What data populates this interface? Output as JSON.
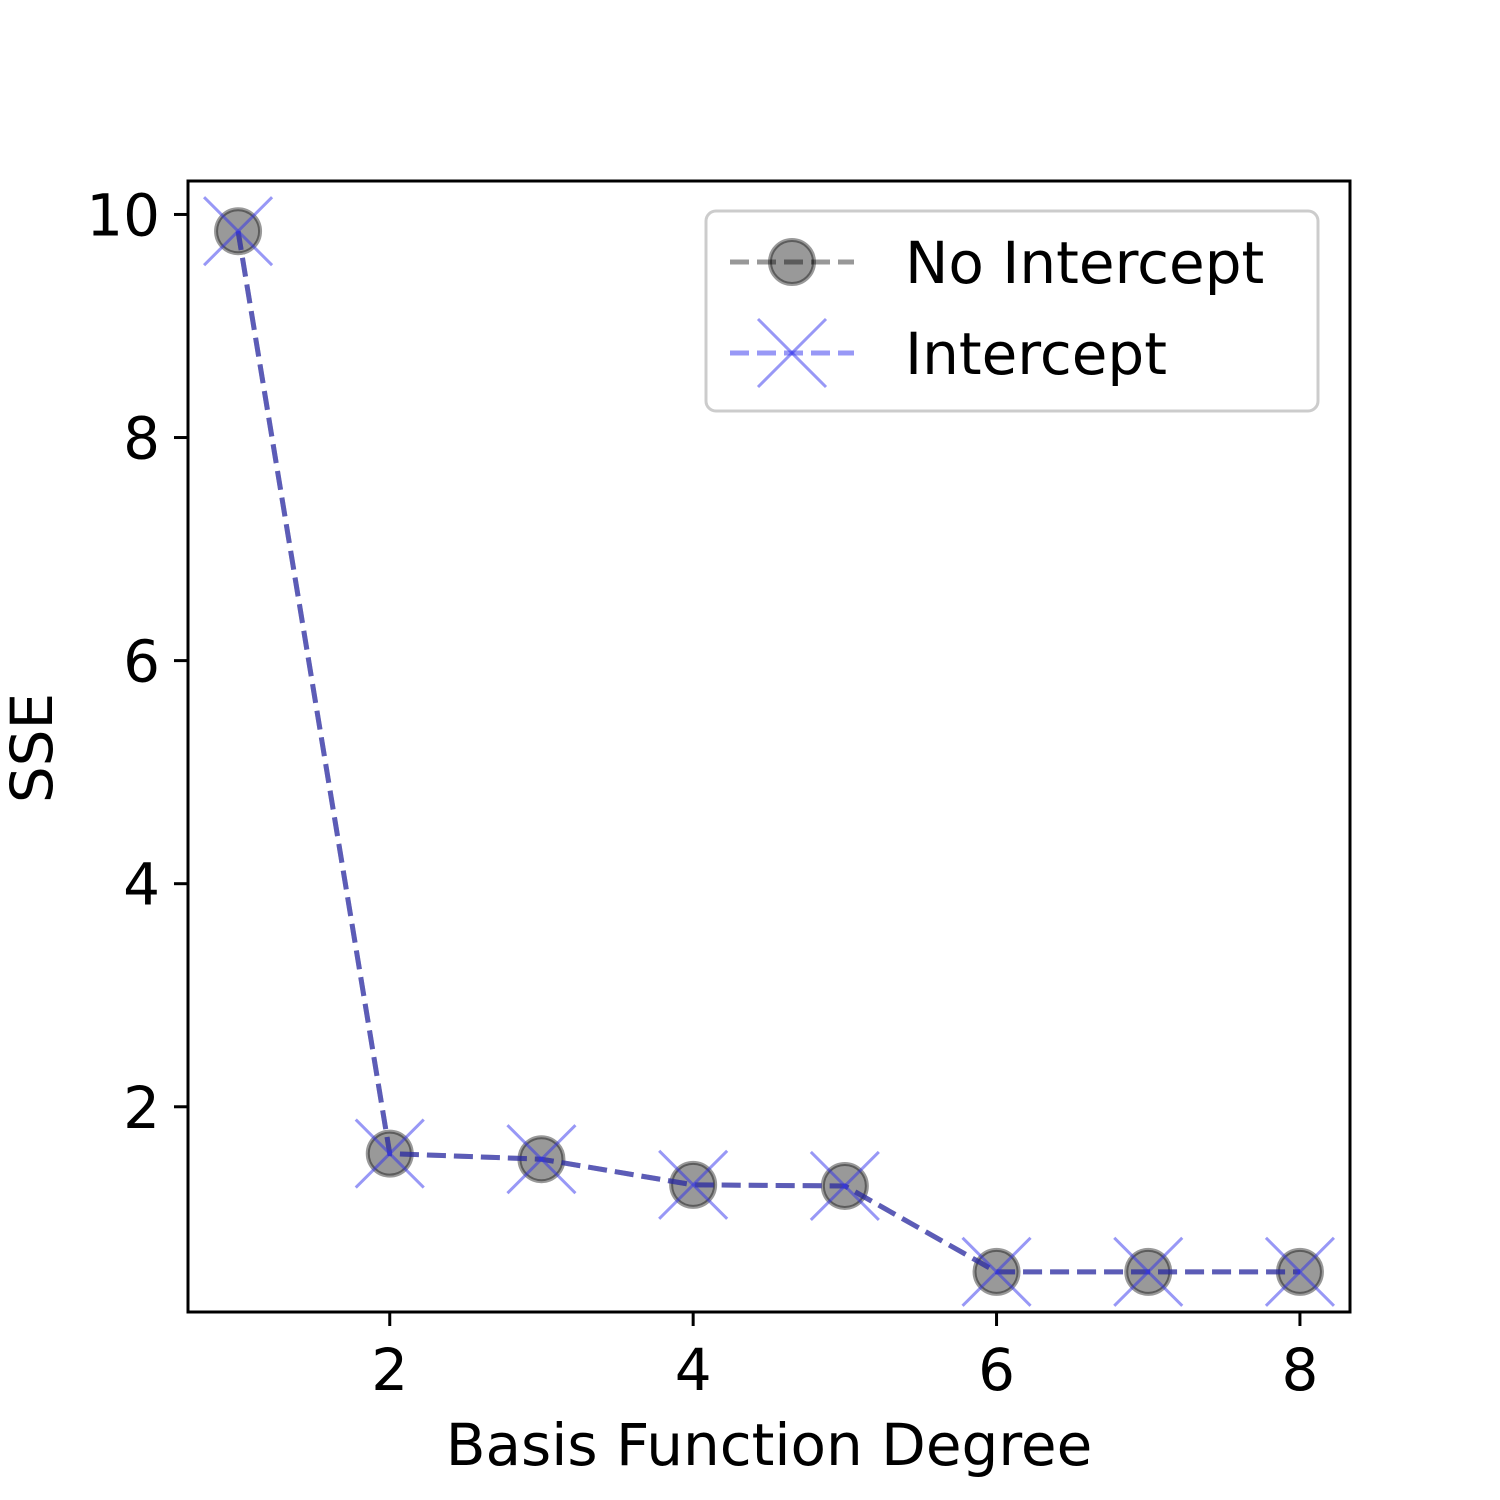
{
  "chart_data": {
    "type": "line",
    "title": "",
    "xlabel": "Basis Function Degree",
    "ylabel": "SSE",
    "xlim": [
      0.67,
      8.33
    ],
    "ylim": [
      0.16,
      10.3
    ],
    "xticks": [
      2,
      4,
      6,
      8
    ],
    "yticks": [
      2,
      4,
      6,
      8,
      10
    ],
    "xtick_labels": [
      "2",
      "4",
      "6",
      "8"
    ],
    "ytick_labels": [
      "2",
      "4",
      "6",
      "8",
      "10"
    ],
    "grid": false,
    "legend_position": "top-right",
    "x": [
      1,
      2,
      3,
      4,
      5,
      6,
      7,
      8
    ],
    "series": [
      {
        "name": "No Intercept",
        "values": [
          9.85,
          1.58,
          1.53,
          1.3,
          1.29,
          0.52,
          0.52,
          0.52
        ],
        "color": "#000000",
        "marker": "circle",
        "linestyle": "dashed"
      },
      {
        "name": "Intercept",
        "values": [
          9.85,
          1.58,
          1.53,
          1.3,
          1.29,
          0.52,
          0.52,
          0.52
        ],
        "color": "#3333cc",
        "marker": "x",
        "linestyle": "dashed"
      }
    ]
  }
}
